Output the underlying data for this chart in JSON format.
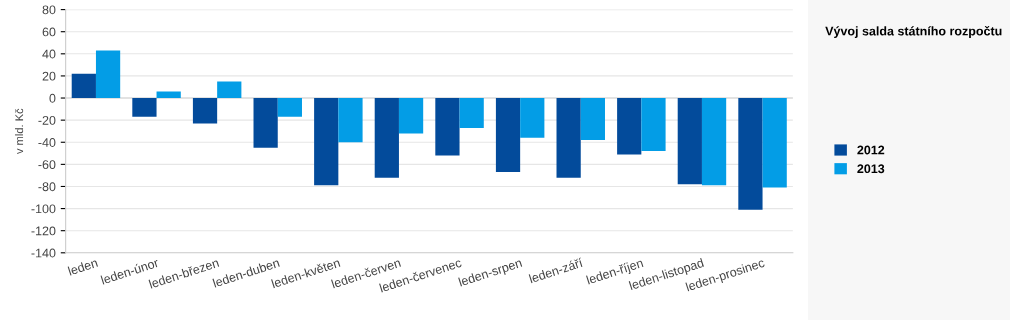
{
  "chart_data": {
    "type": "bar",
    "title": "Vývoj salda státního rozpočtu",
    "ylabel": "v mld. Kč",
    "categories": [
      "leden",
      "leden-únor",
      "leden-březen",
      "leden-duben",
      "leden-květen",
      "leden-červen",
      "leden-červenec",
      "leden-srpen",
      "leden-září",
      "leden-říjen",
      "leden-listopad",
      "leden-prosinec"
    ],
    "series": [
      {
        "name": "2012",
        "color": "#034b9b",
        "values": [
          22,
          -17,
          -23,
          -45,
          -79,
          -72,
          -52,
          -67,
          -72,
          -51,
          -78,
          -101
        ]
      },
      {
        "name": "2013",
        "color": "#039de6",
        "values": [
          43,
          6,
          15,
          -17,
          -40,
          -32,
          -27,
          -36,
          -38,
          -48,
          -79,
          -81
        ]
      }
    ],
    "ylim": [
      -140,
      80
    ],
    "yticks": [
      -140,
      -120,
      -100,
      -80,
      -60,
      -40,
      -20,
      0,
      20,
      40,
      60,
      80
    ],
    "grid": true,
    "legend": "right"
  }
}
